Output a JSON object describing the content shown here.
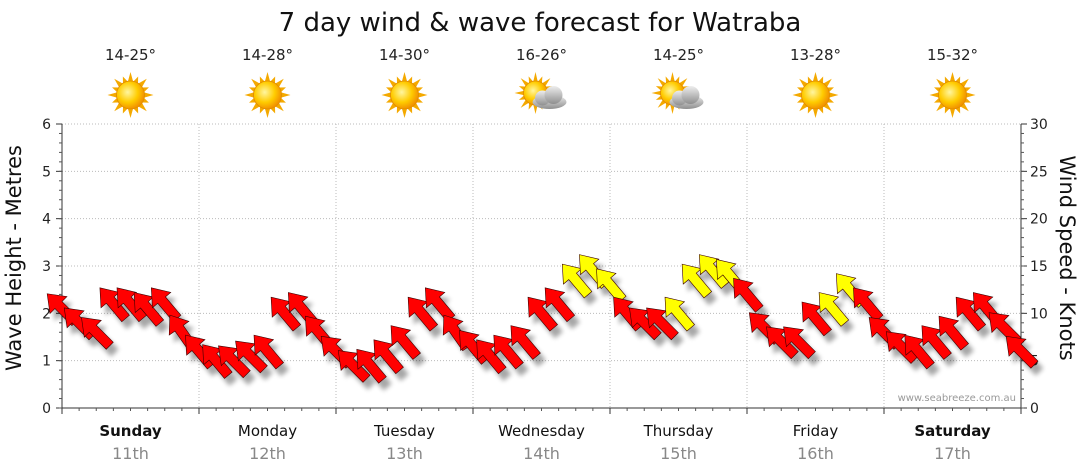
{
  "chart_data": {
    "type": "line",
    "title": "7 day wind & wave forecast for Watraba",
    "ylabel_left": "Wave Height - Metres",
    "ylabel_right": "Wind Speed - Knots",
    "ylim_left": [
      0,
      6
    ],
    "ylim_right": [
      0,
      30
    ],
    "yticks_left": [
      "0",
      "1",
      "2",
      "3",
      "4",
      "5",
      "6"
    ],
    "yticks_right": [
      "0",
      "5",
      "10",
      "15",
      "20",
      "25",
      "30"
    ],
    "watermark": "www.seabreeze.com.au",
    "days": [
      {
        "name": "Sunday",
        "date": "11th",
        "temp": "14-25°",
        "icon": "sun-icon",
        "bold": true
      },
      {
        "name": "Monday",
        "date": "12th",
        "temp": "14-28°",
        "icon": "sun-icon",
        "bold": false
      },
      {
        "name": "Tuesday",
        "date": "13th",
        "temp": "14-30°",
        "icon": "sun-icon",
        "bold": false
      },
      {
        "name": "Wednesday",
        "date": "14th",
        "temp": "16-26°",
        "icon": "partly-cloudy-icon",
        "bold": false
      },
      {
        "name": "Thursday",
        "date": "15th",
        "temp": "14-25°",
        "icon": "partly-cloudy-icon",
        "bold": false
      },
      {
        "name": "Friday",
        "date": "16th",
        "temp": "13-28°",
        "icon": "sun-icon",
        "bold": false
      },
      {
        "name": "Saturday",
        "date": "17th",
        "temp": "15-32°",
        "icon": "sun-icon",
        "bold": true
      }
    ],
    "wind_series": {
      "name": "Wind Speed (knots) every 3 hours",
      "values": [
        10.5,
        9,
        8,
        11,
        11,
        10.5,
        11,
        8,
        6,
        5,
        5,
        5.5,
        6,
        10,
        10.5,
        8,
        6,
        4.5,
        4.5,
        5.5,
        7,
        10,
        11,
        8,
        6.5,
        5.5,
        6,
        7,
        10,
        11,
        13.5,
        14.5,
        13,
        10,
        9,
        9,
        10,
        13.5,
        14.5,
        14,
        12,
        8.5,
        7,
        7,
        9.5,
        10.5,
        12.5,
        11,
        8,
        6.5,
        6,
        7,
        8,
        10,
        10.5,
        8.5,
        6
      ],
      "direction_deg": [
        315,
        315,
        315,
        320,
        320,
        320,
        320,
        325,
        320,
        320,
        315,
        315,
        320,
        320,
        320,
        320,
        315,
        315,
        320,
        320,
        320,
        320,
        320,
        325,
        320,
        320,
        320,
        320,
        320,
        320,
        320,
        320,
        320,
        320,
        315,
        315,
        320,
        320,
        320,
        320,
        320,
        315,
        315,
        315,
        320,
        320,
        320,
        320,
        315,
        315,
        320,
        320,
        320,
        320,
        320,
        315,
        315
      ],
      "colors": {
        "strong": "#ff0000",
        "moderate": "#ffff00"
      },
      "moderate_indices": [
        30,
        31,
        32,
        36,
        37,
        38,
        39,
        45,
        46
      ]
    }
  }
}
